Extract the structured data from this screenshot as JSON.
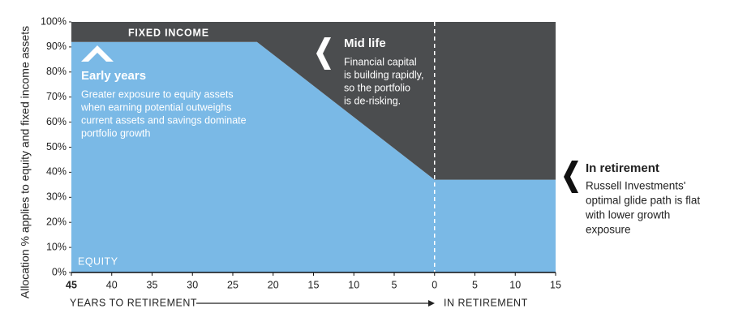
{
  "chart_data": {
    "type": "area",
    "stacked": true,
    "y_label": "Allocation % applies to equity and fixed income assets",
    "x_label_left": "YEARS TO RETIREMENT",
    "x_label_right": "IN RETIREMENT",
    "x": [
      -45,
      -22,
      0,
      15
    ],
    "series": [
      {
        "name": "EQUITY",
        "color": "#7ab9e6",
        "values": [
          92,
          92,
          37,
          37
        ]
      },
      {
        "name": "FIXED INCOME",
        "color": "#4b4d4f",
        "values": [
          8,
          8,
          63,
          63
        ]
      }
    ],
    "xlim": [
      -45,
      15
    ],
    "ylim": [
      0,
      100
    ],
    "xticks": [
      {
        "value": -45,
        "label": "45"
      },
      {
        "value": -40,
        "label": "40"
      },
      {
        "value": -35,
        "label": "35"
      },
      {
        "value": -30,
        "label": "30"
      },
      {
        "value": -25,
        "label": "25"
      },
      {
        "value": -20,
        "label": "20"
      },
      {
        "value": -15,
        "label": "15"
      },
      {
        "value": -10,
        "label": "10"
      },
      {
        "value": -5,
        "label": "5"
      },
      0,
      5,
      10,
      15
    ],
    "yticks": [
      {
        "value": 0,
        "label": "0%"
      },
      {
        "value": 10,
        "label": "10%"
      },
      {
        "value": 20,
        "label": "20%"
      },
      {
        "value": 30,
        "label": "30%"
      },
      {
        "value": 40,
        "label": "40%"
      },
      {
        "value": 50,
        "label": "50%"
      },
      {
        "value": 60,
        "label": "60%"
      },
      {
        "value": 70,
        "label": "70%"
      },
      {
        "value": 80,
        "label": "80%"
      },
      {
        "value": 90,
        "label": "90%"
      },
      {
        "value": 100,
        "label": "100%"
      }
    ],
    "retirement_line": 0,
    "annotations": [
      {
        "title": "Early years",
        "text": [
          "Greater exposure to equity assets",
          "when earning potential outweighs",
          "current assets and savings dominate",
          "portfolio growth"
        ]
      },
      {
        "title": "Mid life",
        "text": [
          "Financial capital",
          "is building rapidly,",
          "so the portfolio",
          "is de-risking."
        ]
      },
      {
        "title": "In retirement",
        "text": [
          "Russell Investments'",
          "optimal glide path is flat",
          "with lower growth",
          "exposure"
        ]
      }
    ]
  }
}
